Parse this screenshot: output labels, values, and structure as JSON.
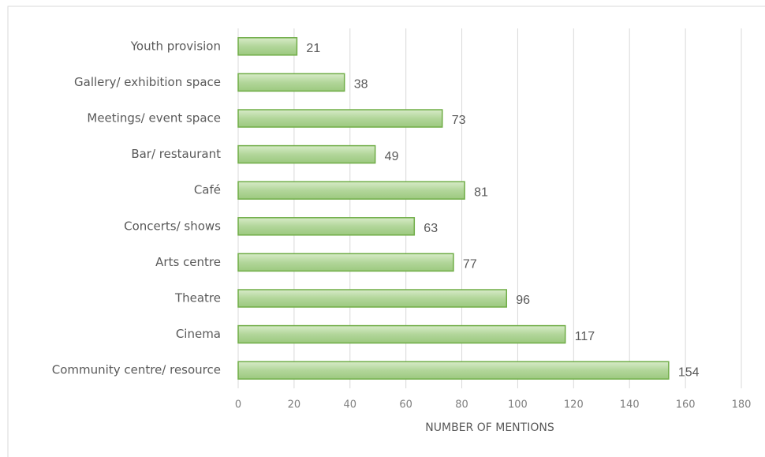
{
  "chart_data": {
    "type": "bar",
    "orientation": "horizontal",
    "categories": [
      "Youth provision",
      "Gallery/ exhibition space",
      "Meetings/ event space",
      "Bar/ restaurant",
      "Café",
      "Concerts/ shows",
      "Arts centre",
      "Theatre",
      "Cinema",
      "Community centre/ resource"
    ],
    "values": [
      21,
      38,
      73,
      49,
      81,
      63,
      77,
      96,
      117,
      154
    ],
    "color": "#a9d18e",
    "edge_color": "#70ad47",
    "xlim": [
      0,
      180
    ],
    "xticks": [
      0,
      20,
      40,
      60,
      80,
      100,
      120,
      140,
      160,
      180
    ],
    "x_label": "NUMBER OF MENTIONS",
    "grid": true
  }
}
